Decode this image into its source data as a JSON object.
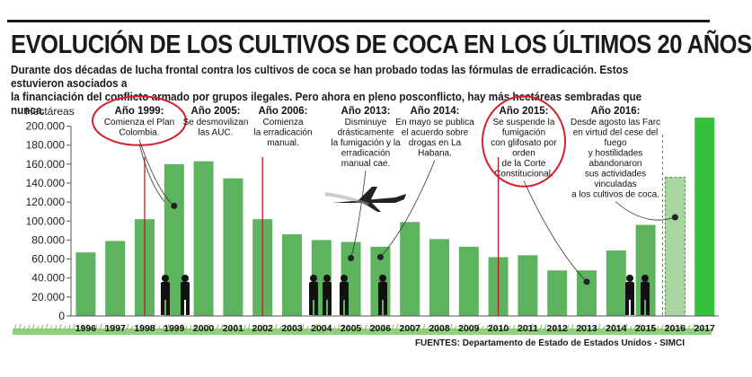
{
  "title": "EVOLUCIÓN DE LOS CULTIVOS DE COCA EN LOS ÚLTIMOS 20 AÑOS",
  "subtitle_lines": [
    "Durante dos décadas de lucha frontal contra los cultivos de coca se han probado todas las fórmulas de erradicación. Estos estuvieron asociados a",
    "la financiación del conflicto armado por grupos ilegales. Pero ahora en pleno posconflicto, hay más hectáreas sembradas que nunca."
  ],
  "source": "FUENTES:  Departamento de Estado de Estados Unidos - SIMCI",
  "colors": {
    "bar": "#5eb35e",
    "bar_light": "#a8d5a0",
    "bar_bright": "#35c13b",
    "circle": "#d4202c",
    "marker": "#b5202a",
    "grass": "#8fd07a"
  },
  "chart_data": {
    "type": "bar",
    "ylabel": "Hectáreas",
    "ylim": [
      0,
      210000
    ],
    "yticks": [
      0,
      20000,
      40000,
      60000,
      80000,
      100000,
      120000,
      140000,
      160000,
      180000,
      200000
    ],
    "ytick_labels": [
      "0",
      "20.000",
      "40.000",
      "60.000",
      "80.000",
      "100.000",
      "120.000",
      "140.000",
      "160.000",
      "180.000",
      "200.000"
    ],
    "categories": [
      "1996",
      "1997",
      "1998",
      "1999",
      "2000",
      "2001",
      "2002",
      "2003",
      "2004",
      "2005",
      "2006",
      "2007",
      "2008",
      "2009",
      "2010",
      "2011",
      "2012",
      "2013",
      "2014",
      "2015",
      "2016",
      "2017"
    ],
    "values": [
      67000,
      79000,
      102000,
      160000,
      163000,
      145000,
      102000,
      86000,
      80000,
      78000,
      73000,
      99000,
      81000,
      73000,
      62000,
      64000,
      48000,
      48000,
      69000,
      96000,
      146000,
      209000
    ]
  },
  "annotations": [
    {
      "year": "1999",
      "lines": [
        "Comienza el Plan",
        "Colombia."
      ],
      "circled": true,
      "dot_value": 116000
    },
    {
      "year": "2005",
      "lines": [
        "Se desmovilizan",
        "las AUC."
      ]
    },
    {
      "year": "2006",
      "lines": [
        "Comienza",
        "la erradicación",
        "manual."
      ]
    },
    {
      "year": "2013",
      "lines": [
        "Disminuye",
        "drásticamente",
        "la fumigación y la",
        "erradicación",
        "manual cae."
      ],
      "dot_value": 61000
    },
    {
      "year": "2014",
      "lines": [
        "En mayo se publica",
        "el acuerdo sobre",
        "drogas en La",
        "Habana."
      ],
      "dot_value": 62000
    },
    {
      "year": "2015",
      "lines": [
        "Se suspende la",
        "fumigación",
        "con glifosato por",
        "orden",
        "de la Corte",
        "Constitucional."
      ],
      "circled": true,
      "dot_value": 36000
    },
    {
      "year": "2016",
      "lines": [
        "Desde agosto las Farc",
        "en virtud del cese del",
        "fuego",
        "y hostilidades",
        "abandonaron",
        "sus actividades",
        "vinculadas",
        "a los cultivos de coca."
      ],
      "dot_value": 104000
    }
  ],
  "markers": [
    {
      "label": "Año 1999:"
    },
    {
      "label": "Año 2005:"
    },
    {
      "label": "Año 2006:"
    },
    {
      "label": "Año 2013:"
    },
    {
      "label": "Año 2014:"
    },
    {
      "label": "Año 2015:"
    },
    {
      "label": "Año 2016:"
    }
  ]
}
